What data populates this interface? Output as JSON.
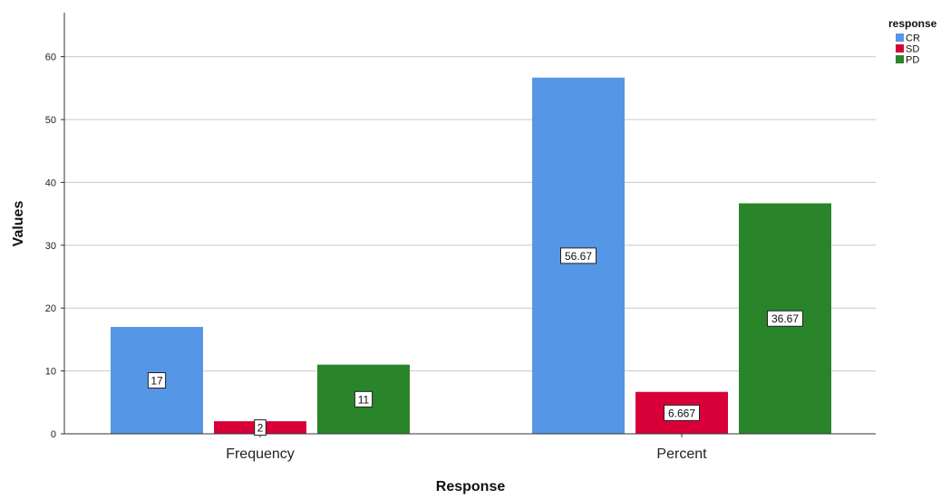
{
  "chart_data": {
    "type": "bar",
    "xlabel": "Response",
    "ylabel": "Values",
    "categories": [
      "Frequency",
      "Percent"
    ],
    "series": [
      {
        "name": "CR",
        "values": [
          17,
          56.67
        ],
        "labels": [
          "17",
          "56.67"
        ],
        "color": "#5596E6"
      },
      {
        "name": "SD",
        "values": [
          2,
          6.667
        ],
        "labels": [
          "2",
          "6.667"
        ],
        "color": "#D9003A"
      },
      {
        "name": "PD",
        "values": [
          11,
          36.67
        ],
        "labels": [
          "11",
          "36.67"
        ],
        "color": "#2A852A"
      }
    ],
    "ylim": [
      0,
      67
    ],
    "yticks": [
      0,
      10,
      20,
      30,
      40,
      50,
      60
    ],
    "grid": true,
    "legend": {
      "title": "response",
      "position": "top-right"
    }
  }
}
